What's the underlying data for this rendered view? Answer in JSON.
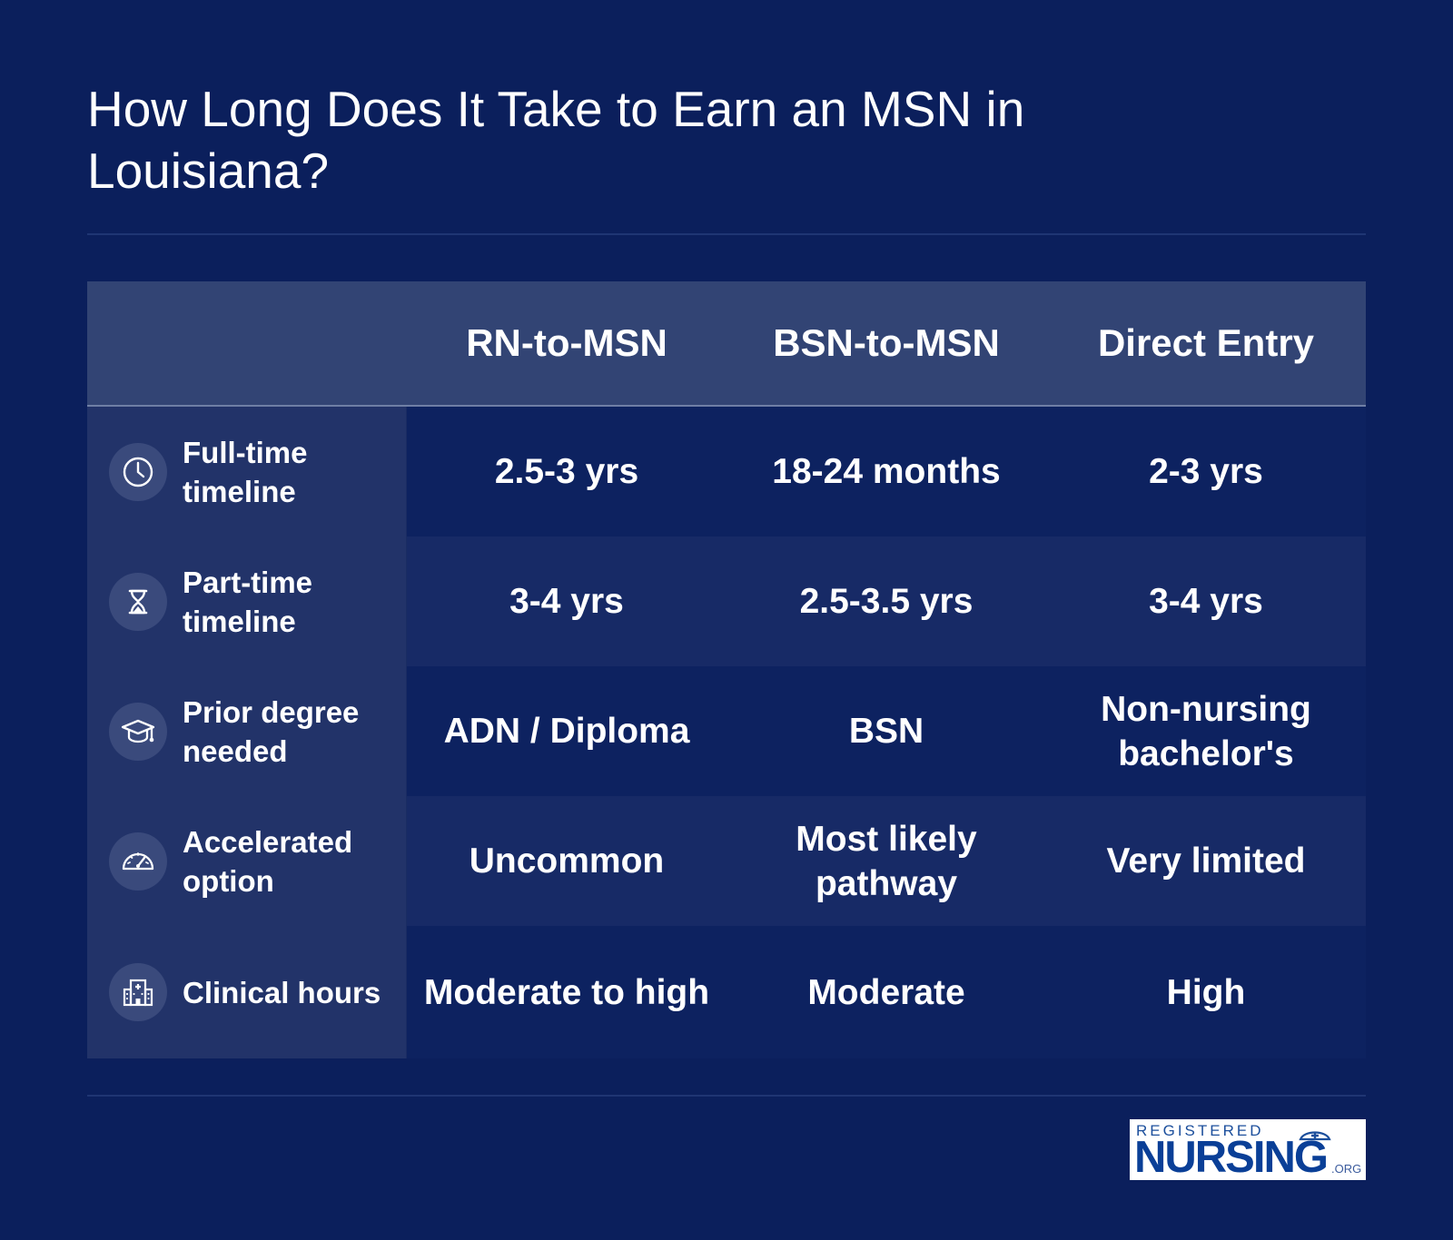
{
  "title": "How Long Does It Take to Earn an MSN in Louisiana?",
  "table": {
    "columns": [
      "RN-to-MSN",
      "BSN-to-MSN",
      "Direct Entry"
    ],
    "rows": [
      {
        "label": "Full-time timeline",
        "icon": "clock-icon",
        "cells": [
          "2.5-3 yrs",
          "18-24 months",
          "2-3 yrs"
        ]
      },
      {
        "label": "Part-time timeline",
        "icon": "hourglass-icon",
        "cells": [
          "3-4 yrs",
          "2.5-3.5 yrs",
          "3-4 yrs"
        ]
      },
      {
        "label": "Prior degree needed",
        "icon": "graduation-cap-icon",
        "cells": [
          "ADN / Diploma",
          "BSN",
          "Non-nursing bachelor's"
        ]
      },
      {
        "label": "Accelerated option",
        "icon": "speedometer-icon",
        "cells": [
          "Uncommon",
          "Most likely pathway",
          "Very limited"
        ]
      },
      {
        "label": "Clinical hours",
        "icon": "hospital-icon",
        "cells": [
          "Moderate to high",
          "Moderate",
          "High"
        ]
      }
    ]
  },
  "logo": {
    "top_text": "REGISTERED",
    "main_text": "NURSING",
    "suffix": ".ORG"
  },
  "colors": {
    "background": "#0b1f5c",
    "header_band": "#324474",
    "label_column": "#223369",
    "row_alt": "#172a66",
    "logo_blue": "#0a3f97"
  }
}
